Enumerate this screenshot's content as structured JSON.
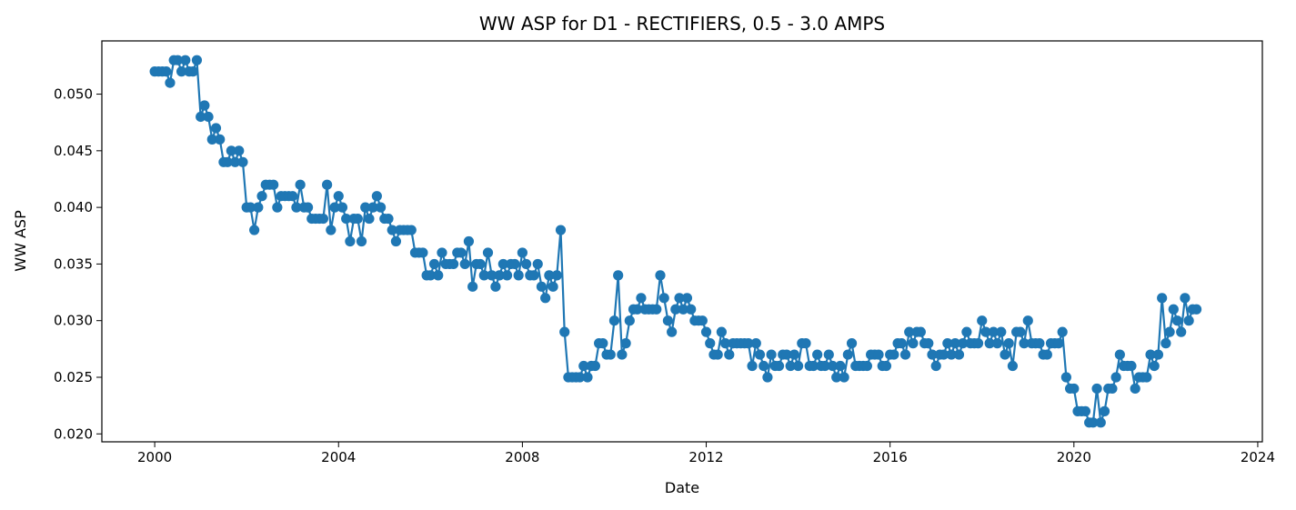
{
  "chart_data": {
    "type": "line",
    "title": "WW ASP for D1 - RECTIFIERS, 0.5 - 3.0 AMPS",
    "xlabel": "Date",
    "ylabel": "WW ASP",
    "xlim": [
      1998.85,
      2024.1
    ],
    "ylim": [
      0.0193,
      0.0547
    ],
    "x_ticks": [
      2000,
      2004,
      2008,
      2012,
      2016,
      2020,
      2024
    ],
    "x_tick_labels": [
      "2000",
      "2004",
      "2008",
      "2012",
      "2016",
      "2020",
      "2024"
    ],
    "y_ticks": [
      0.02,
      0.025,
      0.03,
      0.035,
      0.04,
      0.045,
      0.05
    ],
    "y_tick_labels": [
      "0.020",
      "0.025",
      "0.030",
      "0.035",
      "0.040",
      "0.045",
      "0.050"
    ],
    "grid": false,
    "legend": "none",
    "series_color": "#1f77b4",
    "marker": "circle",
    "series": [
      {
        "start_date": "2000-01",
        "frequency": "monthly",
        "values": [
          0.052,
          0.052,
          0.052,
          0.052,
          0.051,
          0.053,
          0.053,
          0.052,
          0.053,
          0.052,
          0.052,
          0.053,
          0.048,
          0.049,
          0.048,
          0.046,
          0.047,
          0.046,
          0.044,
          0.044,
          0.045,
          0.044,
          0.045,
          0.044,
          0.04,
          0.04,
          0.038,
          0.04,
          0.041,
          0.042,
          0.042,
          0.042,
          0.04,
          0.041,
          0.041,
          0.041,
          0.041,
          0.04,
          0.042,
          0.04,
          0.04,
          0.039,
          0.039,
          0.039,
          0.039,
          0.042,
          0.038,
          0.04,
          0.041,
          0.04,
          0.039,
          0.037,
          0.039,
          0.039,
          0.037,
          0.04,
          0.039,
          0.04,
          0.041,
          0.04,
          0.039,
          0.039,
          0.038,
          0.037,
          0.038,
          0.038,
          0.038,
          0.038,
          0.036,
          0.036,
          0.036,
          0.034,
          0.034,
          0.035,
          0.034,
          0.036,
          0.035,
          0.035,
          0.035,
          0.036,
          0.036,
          0.035,
          0.037,
          0.033,
          0.035,
          0.035,
          0.034,
          0.036,
          0.034,
          0.033,
          0.034,
          0.035,
          0.034,
          0.035,
          0.035,
          0.034,
          0.036,
          0.035,
          0.034,
          0.034,
          0.035,
          0.033,
          0.032,
          0.034,
          0.033,
          0.034,
          0.038,
          0.029,
          0.025,
          0.025,
          0.025,
          0.025,
          0.026,
          0.025,
          0.026,
          0.026,
          0.028,
          0.028,
          0.027,
          0.027,
          0.03,
          0.034,
          0.027,
          0.028,
          0.03,
          0.031,
          0.031,
          0.032,
          0.031,
          0.031,
          0.031,
          0.031,
          0.034,
          0.032,
          0.03,
          0.029,
          0.031,
          0.032,
          0.031,
          0.032,
          0.031,
          0.03,
          0.03,
          0.03,
          0.029,
          0.028,
          0.027,
          0.027,
          0.029,
          0.028,
          0.027,
          0.028,
          0.028,
          0.028,
          0.028,
          0.028,
          0.026,
          0.028,
          0.027,
          0.026,
          0.025,
          0.027,
          0.026,
          0.026,
          0.027,
          0.027,
          0.026,
          0.027,
          0.026,
          0.028,
          0.028,
          0.026,
          0.026,
          0.027,
          0.026,
          0.026,
          0.027,
          0.026,
          0.025,
          0.026,
          0.025,
          0.027,
          0.028,
          0.026,
          0.026,
          0.026,
          0.026,
          0.027,
          0.027,
          0.027,
          0.026,
          0.026,
          0.027,
          0.027,
          0.028,
          0.028,
          0.027,
          0.029,
          0.028,
          0.029,
          0.029,
          0.028,
          0.028,
          0.027,
          0.026,
          0.027,
          0.027,
          0.028,
          0.027,
          0.028,
          0.027,
          0.028,
          0.029,
          0.028,
          0.028,
          0.028,
          0.03,
          0.029,
          0.028,
          0.029,
          0.028,
          0.029,
          0.027,
          0.028,
          0.026,
          0.029,
          0.029,
          0.028,
          0.03,
          0.028,
          0.028,
          0.028,
          0.027,
          0.027,
          0.028,
          0.028,
          0.028,
          0.029,
          0.025,
          0.024,
          0.024,
          0.022,
          0.022,
          0.022,
          0.021,
          0.021,
          0.024,
          0.021,
          0.022,
          0.024,
          0.024,
          0.025,
          0.027,
          0.026,
          0.026,
          0.026,
          0.024,
          0.025,
          0.025,
          0.025,
          0.027,
          0.026,
          0.027,
          0.032,
          0.028,
          0.029,
          0.031,
          0.03,
          0.029,
          0.032,
          0.03,
          0.031,
          0.031
        ]
      }
    ]
  }
}
